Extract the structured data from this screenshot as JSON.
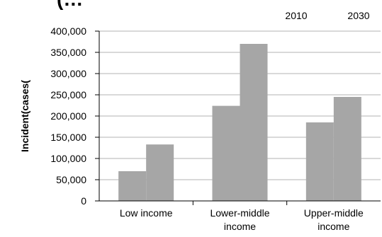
{
  "chart_data": {
    "type": "bar",
    "title": "(…",
    "ylabel": "Incident(cases(",
    "xlabel": "",
    "categories": [
      [
        "Low income"
      ],
      [
        "Lower-middle",
        "income"
      ],
      [
        "Upper-middle",
        "income"
      ]
    ],
    "series": [
      {
        "name": "2010",
        "values": [
          70000,
          224000,
          185000
        ]
      },
      {
        "name": "2030",
        "values": [
          133000,
          370000,
          245000
        ]
      }
    ],
    "ylim": [
      0,
      400000
    ],
    "yticks": [
      "0",
      "50,000",
      "100,000",
      "150,000",
      "200,000",
      "250,000",
      "300,000",
      "350,000",
      "400,000"
    ],
    "grid": true,
    "legend_position": "top-right",
    "bar_color": "#a6a6a6",
    "axis_color": "#000000",
    "grid_color": "#b3b3b3"
  }
}
